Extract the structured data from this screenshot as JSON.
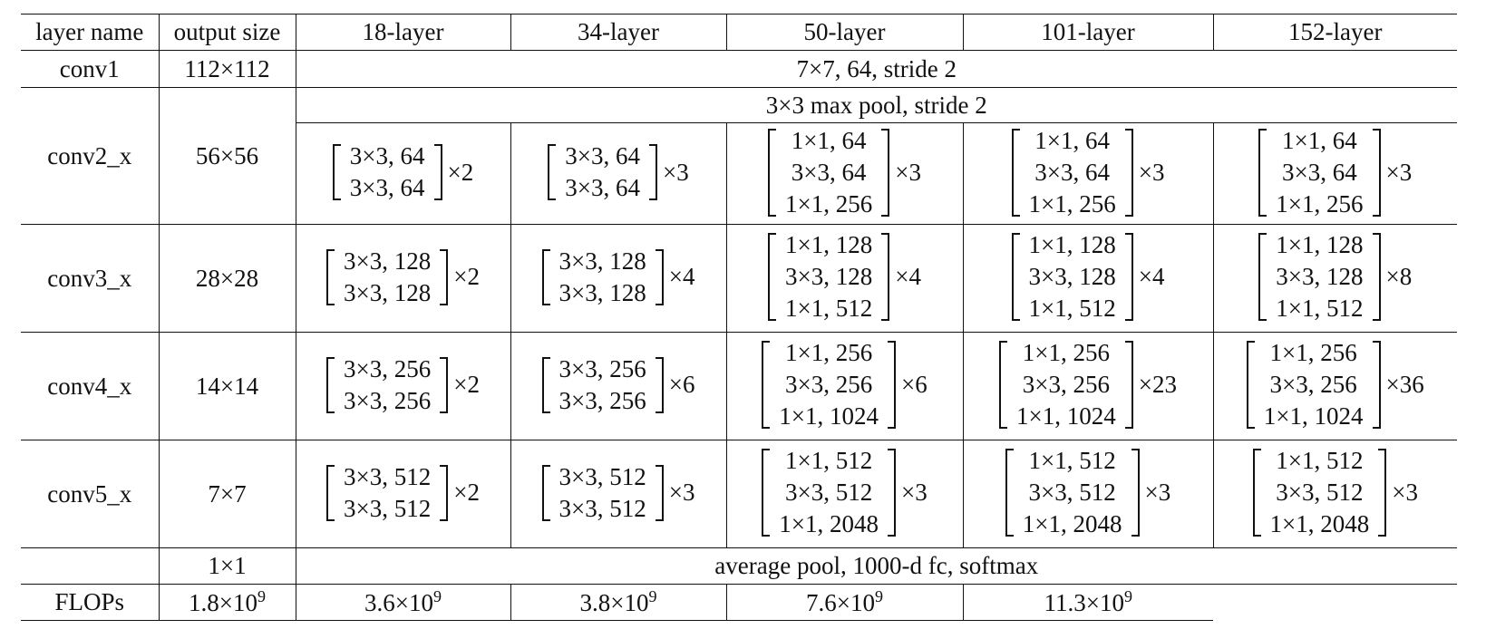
{
  "header": [
    "layer name",
    "output size",
    "18-layer",
    "34-layer",
    "50-layer",
    "101-layer",
    "152-layer"
  ],
  "rows": [
    {
      "layer": "conv1",
      "output": "112×112",
      "span": "7×7, 64, stride 2"
    },
    {
      "layer": "conv2_x",
      "output": "56×56",
      "pool": "3×3 max pool, stride 2",
      "blocks": [
        {
          "lines": [
            "3×3, 64",
            "3×3, 64"
          ],
          "repeat": "×2"
        },
        {
          "lines": [
            "3×3, 64",
            "3×3, 64"
          ],
          "repeat": "×3"
        },
        {
          "lines": [
            "1×1, 64",
            "3×3, 64",
            "1×1, 256"
          ],
          "repeat": "×3"
        },
        {
          "lines": [
            "1×1, 64",
            "3×3, 64",
            "1×1, 256"
          ],
          "repeat": "×3"
        },
        {
          "lines": [
            "1×1, 64",
            "3×3, 64",
            "1×1, 256"
          ],
          "repeat": "×3"
        }
      ]
    },
    {
      "layer": "conv3_x",
      "output": "28×28",
      "blocks": [
        {
          "lines": [
            "3×3, 128",
            "3×3, 128"
          ],
          "repeat": "×2"
        },
        {
          "lines": [
            "3×3, 128",
            "3×3, 128"
          ],
          "repeat": "×4"
        },
        {
          "lines": [
            "1×1, 128",
            "3×3, 128",
            "1×1, 512"
          ],
          "repeat": "×4"
        },
        {
          "lines": [
            "1×1, 128",
            "3×3, 128",
            "1×1, 512"
          ],
          "repeat": "×4"
        },
        {
          "lines": [
            "1×1, 128",
            "3×3, 128",
            "1×1, 512"
          ],
          "repeat": "×8"
        }
      ]
    },
    {
      "layer": "conv4_x",
      "output": "14×14",
      "blocks": [
        {
          "lines": [
            "3×3, 256",
            "3×3, 256"
          ],
          "repeat": "×2"
        },
        {
          "lines": [
            "3×3, 256",
            "3×3, 256"
          ],
          "repeat": "×6"
        },
        {
          "lines": [
            "1×1, 256",
            "3×3, 256",
            "1×1, 1024"
          ],
          "repeat": "×6"
        },
        {
          "lines": [
            "1×1, 256",
            "3×3, 256",
            "1×1, 1024"
          ],
          "repeat": "×23"
        },
        {
          "lines": [
            "1×1, 256",
            "3×3, 256",
            "1×1, 1024"
          ],
          "repeat": "×36"
        }
      ]
    },
    {
      "layer": "conv5_x",
      "output": "7×7",
      "blocks": [
        {
          "lines": [
            "3×3, 512",
            "3×3, 512"
          ],
          "repeat": "×2"
        },
        {
          "lines": [
            "3×3, 512",
            "3×3, 512"
          ],
          "repeat": "×3"
        },
        {
          "lines": [
            "1×1, 512",
            "3×3, 512",
            "1×1, 2048"
          ],
          "repeat": "×3"
        },
        {
          "lines": [
            "1×1, 512",
            "3×3, 512",
            "1×1, 2048"
          ],
          "repeat": "×3"
        },
        {
          "lines": [
            "1×1, 512",
            "3×3, 512",
            "1×1, 2048"
          ],
          "repeat": "×3"
        }
      ]
    },
    {
      "output": "1×1",
      "span": "average pool, 1000-d fc, softmax"
    }
  ],
  "flops": {
    "label": "FLOPs",
    "values": [
      {
        "base": "1.8×10",
        "exp": "9"
      },
      {
        "base": "3.6×10",
        "exp": "9"
      },
      {
        "base": "3.8×10",
        "exp": "9"
      },
      {
        "base": "7.6×10",
        "exp": "9"
      },
      {
        "base": "11.3×10",
        "exp": "9"
      }
    ]
  }
}
